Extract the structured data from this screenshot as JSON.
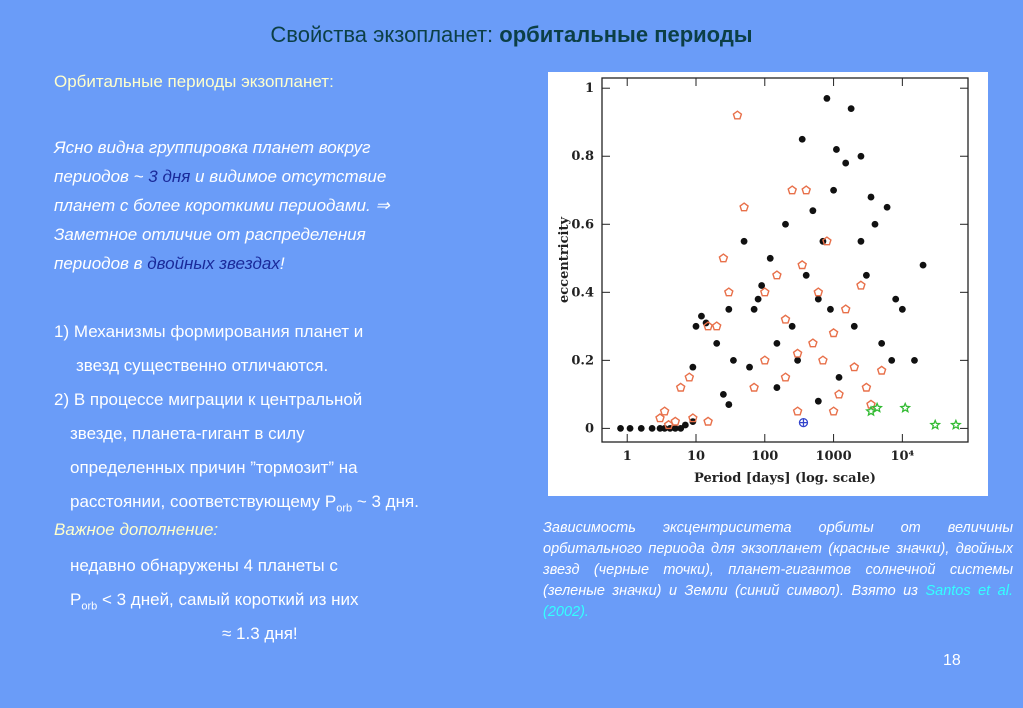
{
  "title": {
    "plain": "Свойства экзопланет: ",
    "bold": "орбитальные периоды"
  },
  "heading": "Орбитальные периоды экзопланет:",
  "para": {
    "l1": "Ясно видна группировка планет вокруг",
    "l2a": "периодов ~ ",
    "l2b": "3 дня",
    "l2c": " и видимое отсутствие",
    "l3": "планет с более короткими периодами. ⇒",
    "l4": "Заметное отличие от распределения",
    "l5a": "периодов в ",
    "l5b": "двойных звездах",
    "l5c": "!"
  },
  "list": {
    "l1": "1) Механизмы формирования планет и",
    "l2": "звезд существенно отличаются.",
    "l3": "2) В процессе миграции к центральной",
    "l4": "звезде, планета-гигант в силу",
    "l5": "определенных причин ”тормозит” на",
    "l6a": "расстоянии, соответствующему P",
    "l6b": "orb",
    "l6c": " ~ 3 дня."
  },
  "note": {
    "title": "Важное дополнение:",
    "l1": "недавно обнаружены 4 планеты с",
    "l2a": "P",
    "l2b": "orb",
    "l2c": " < 3 дней, самый короткий  из них",
    "l3": "≈ 1.3 дня!"
  },
  "caption": {
    "text": "Зависимость эксцентриситета орбиты от величины орбитального периода для экзопланет (красные значки), двойных звезд (черные точки), планет-гигантов солнечной системы (зеленые значки) и Земли (синий символ). Взято из ",
    "link": "Santos et al. (2002)."
  },
  "page_number": "18",
  "chart_data": {
    "type": "scatter",
    "xlabel": "Period [days] (log. scale)",
    "ylabel": "eccentricity",
    "xlog": true,
    "xlim": [
      0.43,
      90000
    ],
    "ylim": [
      -0.04,
      1.03
    ],
    "xticks": [
      1,
      10,
      100,
      1000,
      {
        "value": 10000,
        "label": "10⁴"
      }
    ],
    "yticks": [
      0,
      0.2,
      0.4,
      0.6,
      0.8,
      1
    ],
    "series": [
      {
        "color": "#111111",
        "marker": "dot",
        "points": [
          [
            0.8,
            0
          ],
          [
            1.1,
            0
          ],
          [
            1.6,
            0
          ],
          [
            2.3,
            0
          ],
          [
            3,
            0
          ],
          [
            3.5,
            0
          ],
          [
            4.2,
            0
          ],
          [
            5,
            0
          ],
          [
            6,
            0
          ],
          [
            7,
            0.01
          ],
          [
            9,
            0.02
          ],
          [
            10,
            0.3
          ],
          [
            12,
            0.33
          ],
          [
            14,
            0.31
          ],
          [
            9,
            0.18
          ],
          [
            20,
            0.25
          ],
          [
            25,
            0.1
          ],
          [
            30,
            0.07
          ],
          [
            35,
            0.2
          ],
          [
            50,
            0.55
          ],
          [
            60,
            0.18
          ],
          [
            70,
            0.35
          ],
          [
            80,
            0.38
          ],
          [
            90,
            0.42
          ],
          [
            120,
            0.5
          ],
          [
            150,
            0.25
          ],
          [
            200,
            0.6
          ],
          [
            250,
            0.3
          ],
          [
            300,
            0.2
          ],
          [
            350,
            0.85
          ],
          [
            400,
            0.45
          ],
          [
            500,
            0.64
          ],
          [
            600,
            0.08
          ],
          [
            700,
            0.55
          ],
          [
            800,
            0.97
          ],
          [
            900,
            0.35
          ],
          [
            1000,
            0.7
          ],
          [
            1200,
            0.15
          ],
          [
            1500,
            0.78
          ],
          [
            1800,
            0.94
          ],
          [
            2000,
            0.3
          ],
          [
            2500,
            0.55
          ],
          [
            3000,
            0.45
          ],
          [
            3500,
            0.68
          ],
          [
            4000,
            0.6
          ],
          [
            5000,
            0.25
          ],
          [
            6000,
            0.65
          ],
          [
            7000,
            0.2
          ],
          [
            8000,
            0.38
          ],
          [
            10000,
            0.35
          ],
          [
            15000,
            0.2
          ],
          [
            20000,
            0.48
          ],
          [
            1100,
            0.82
          ],
          [
            600,
            0.38
          ],
          [
            150,
            0.12
          ],
          [
            30,
            0.35
          ],
          [
            2500,
            0.8
          ]
        ]
      },
      {
        "color": "#e8704a",
        "marker": "ring",
        "points": [
          [
            3,
            0.03
          ],
          [
            3.5,
            0.05
          ],
          [
            4,
            0.01
          ],
          [
            5,
            0.02
          ],
          [
            6,
            0.12
          ],
          [
            8,
            0.15
          ],
          [
            9,
            0.03
          ],
          [
            15,
            0.3
          ],
          [
            15,
            0.02
          ],
          [
            20,
            0.3
          ],
          [
            25,
            0.5
          ],
          [
            30,
            0.4
          ],
          [
            50,
            0.65
          ],
          [
            70,
            0.12
          ],
          [
            100,
            0.2
          ],
          [
            100,
            0.4
          ],
          [
            150,
            0.45
          ],
          [
            200,
            0.32
          ],
          [
            250,
            0.7
          ],
          [
            300,
            0.22
          ],
          [
            350,
            0.48
          ],
          [
            400,
            0.7
          ],
          [
            500,
            0.25
          ],
          [
            600,
            0.4
          ],
          [
            700,
            0.2
          ],
          [
            800,
            0.55
          ],
          [
            1000,
            0.28
          ],
          [
            1200,
            0.1
          ],
          [
            1500,
            0.35
          ],
          [
            2000,
            0.18
          ],
          [
            2500,
            0.42
          ],
          [
            3000,
            0.12
          ],
          [
            3500,
            0.07
          ],
          [
            5000,
            0.17
          ],
          [
            40,
            0.92
          ],
          [
            200,
            0.15
          ],
          [
            300,
            0.05
          ],
          [
            1000,
            0.05
          ]
        ]
      },
      {
        "color": "#33bb33",
        "marker": "star",
        "points": [
          [
            3500,
            0.05
          ],
          [
            4300,
            0.06
          ],
          [
            11000,
            0.06
          ],
          [
            30000,
            0.01
          ],
          [
            60000,
            0.01
          ]
        ]
      },
      {
        "color": "#3344cc",
        "marker": "cross",
        "points": [
          [
            365,
            0.017
          ]
        ]
      }
    ]
  }
}
